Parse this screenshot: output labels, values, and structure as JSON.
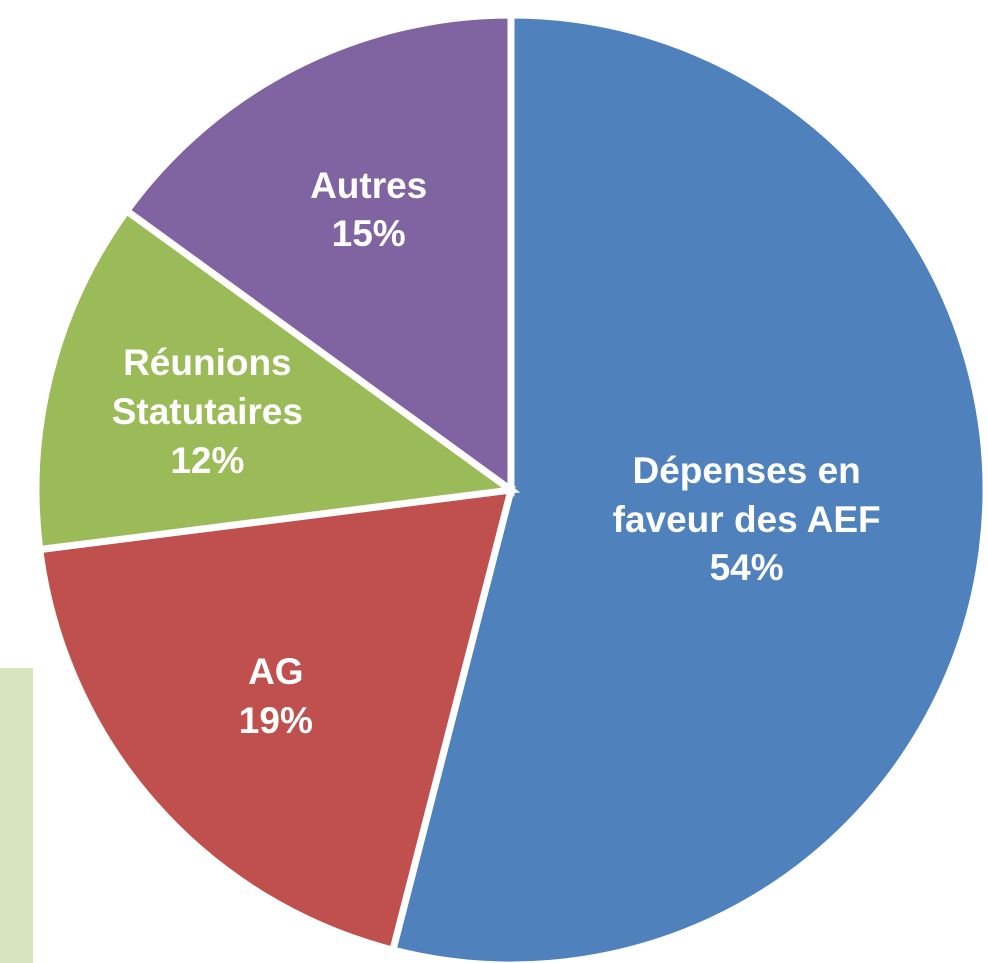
{
  "chart_data": {
    "type": "pie",
    "categories": [
      "Dépenses en faveur des AEF",
      "AG",
      "Réunions Statutaires",
      "Autres"
    ],
    "values": [
      54,
      19,
      12,
      15
    ],
    "value_labels": [
      "54%",
      "19%",
      "12%",
      "15%"
    ],
    "colors": [
      "#4f81bd",
      "#c0504d",
      "#9bbb59",
      "#8064a2"
    ]
  }
}
